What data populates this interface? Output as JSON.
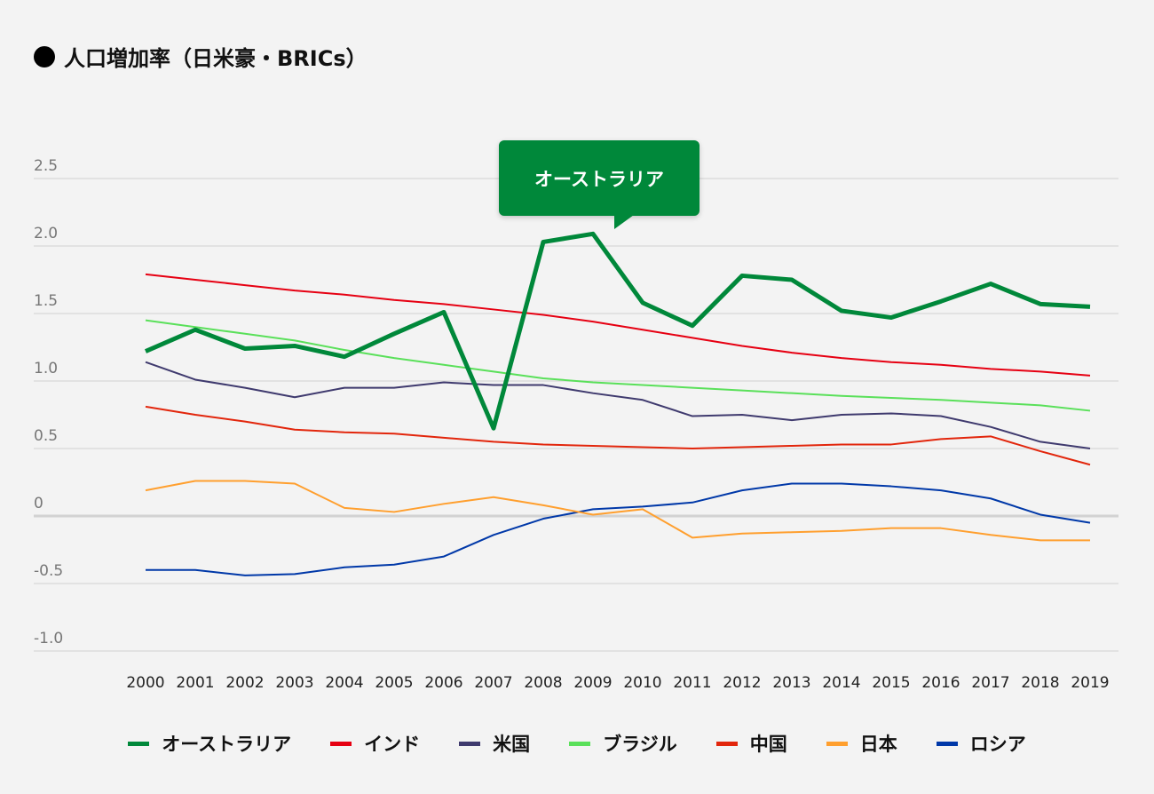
{
  "title": "人口増加率（日米豪・BRICs）",
  "title_icon": "filled-circle-icon",
  "chart_data": {
    "type": "line",
    "title": "人口増加率（日米豪・BRICs）",
    "xlabel": "",
    "ylabel": "",
    "x": [
      "2000",
      "2001",
      "2002",
      "2003",
      "2004",
      "2005",
      "2006",
      "2007",
      "2008",
      "2009",
      "2010",
      "2011",
      "2012",
      "2013",
      "2014",
      "2015",
      "2016",
      "2017",
      "2018",
      "2019"
    ],
    "ylim": [
      -1.0,
      2.5
    ],
    "yticks": [
      "2.5",
      "2.0",
      "1.5",
      "1.0",
      "0.5",
      "0",
      "-0.5",
      "-1.0"
    ],
    "grid": true,
    "legend_position": "bottom",
    "tooltip": {
      "label": "オーストラリア"
    },
    "series": [
      {
        "name": "オーストラリア",
        "color": "#00883a",
        "highlight": true,
        "values": [
          1.22,
          1.38,
          1.24,
          1.26,
          1.18,
          1.35,
          1.51,
          0.65,
          2.03,
          2.09,
          1.58,
          1.41,
          1.78,
          1.75,
          1.52,
          1.47,
          1.59,
          1.72,
          1.57,
          1.55
        ]
      },
      {
        "name": "インド",
        "color": "#e60012",
        "values": [
          1.79,
          1.75,
          1.71,
          1.67,
          1.64,
          1.6,
          1.57,
          1.53,
          1.49,
          1.44,
          1.38,
          1.32,
          1.26,
          1.21,
          1.17,
          1.14,
          1.12,
          1.09,
          1.07,
          1.04
        ]
      },
      {
        "name": "米国",
        "color": "#3f3a6e",
        "values": [
          1.14,
          1.01,
          0.95,
          0.88,
          0.95,
          0.95,
          0.99,
          0.97,
          0.97,
          0.91,
          0.86,
          0.74,
          0.75,
          0.71,
          0.75,
          0.76,
          0.74,
          0.66,
          0.55,
          0.5
        ]
      },
      {
        "name": "ブラジル",
        "color": "#5ae05a",
        "values": [
          1.45,
          1.4,
          1.35,
          1.3,
          1.23,
          1.17,
          1.12,
          1.07,
          1.02,
          0.99,
          0.97,
          0.95,
          0.93,
          0.91,
          0.89,
          0.875,
          0.86,
          0.84,
          0.82,
          0.78
        ]
      },
      {
        "name": "中国",
        "color": "#e2260c",
        "values": [
          0.81,
          0.75,
          0.7,
          0.64,
          0.62,
          0.61,
          0.58,
          0.55,
          0.53,
          0.52,
          0.51,
          0.5,
          0.51,
          0.52,
          0.53,
          0.53,
          0.57,
          0.59,
          0.48,
          0.38
        ]
      },
      {
        "name": "日本",
        "color": "#ff9f2e",
        "values": [
          0.19,
          0.26,
          0.26,
          0.24,
          0.06,
          0.03,
          0.09,
          0.14,
          0.08,
          0.01,
          0.05,
          -0.16,
          -0.13,
          -0.12,
          -0.11,
          -0.09,
          -0.09,
          -0.14,
          -0.18,
          -0.18
        ]
      },
      {
        "name": "ロシア",
        "color": "#0038a8",
        "values": [
          -0.4,
          -0.4,
          -0.44,
          -0.43,
          -0.38,
          -0.36,
          -0.3,
          -0.14,
          -0.02,
          0.05,
          0.07,
          0.1,
          0.19,
          0.24,
          0.24,
          0.22,
          0.19,
          0.13,
          0.01,
          -0.05
        ]
      }
    ]
  }
}
